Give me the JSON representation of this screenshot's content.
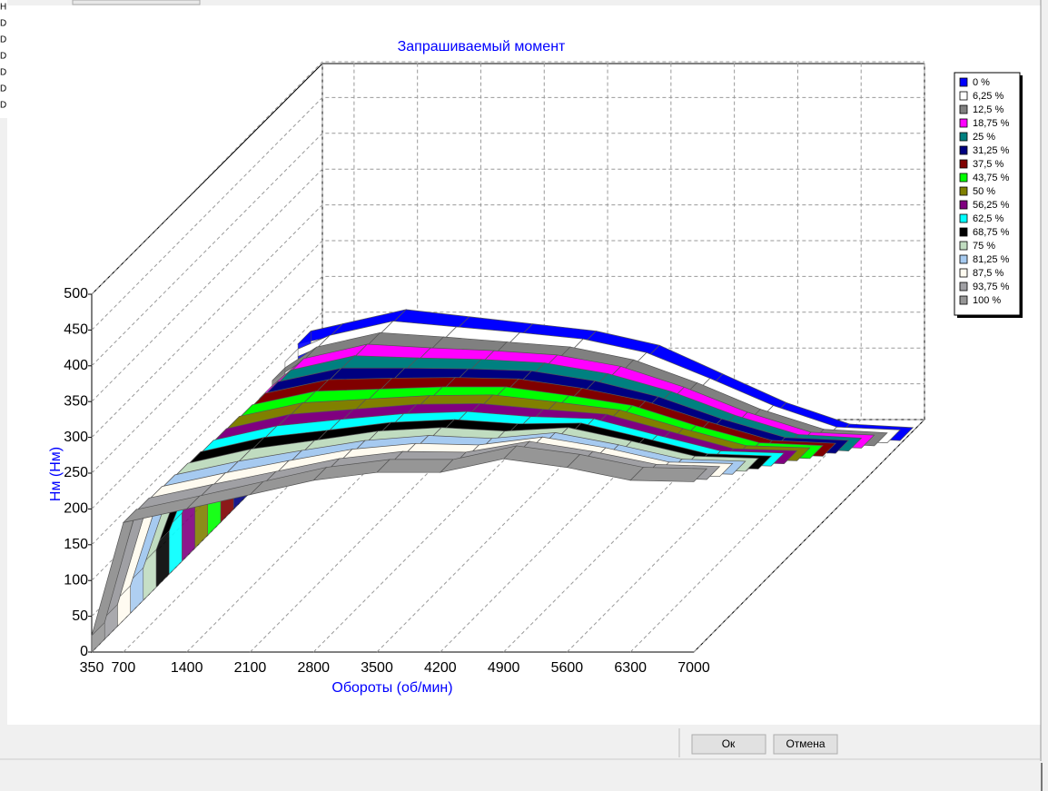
{
  "sidebar_letters": [
    "Н",
    "D",
    "D",
    "D",
    "D",
    "D",
    "D"
  ],
  "buttons": {
    "ok": "Ок",
    "cancel": "Отмена"
  },
  "chart_data": {
    "type": "surface3d",
    "title": "Запрашиваемый момент",
    "x_label": "Обороты (об/мин)",
    "y_label": "Нм (Нм)",
    "x": [
      350,
      700,
      1400,
      2100,
      2800,
      3500,
      4200,
      4900,
      5600,
      6300,
      7000
    ],
    "xlim": [
      350,
      7000
    ],
    "xticks": [
      350,
      700,
      1400,
      2100,
      2800,
      3500,
      4200,
      4900,
      5600,
      6300,
      7000
    ],
    "ylim": [
      0,
      500
    ],
    "yticks": [
      0,
      50,
      100,
      150,
      200,
      250,
      300,
      350,
      400,
      450,
      500
    ],
    "grid": true,
    "legend": "top-right",
    "series": [
      {
        "name": "0 %",
        "color": "#0000ff",
        "values": [
          140,
          150,
          170,
          160,
          150,
          140,
          120,
          80,
          40,
          10,
          5
        ]
      },
      {
        "name": "6,25 %",
        "color": "#ffffff",
        "values": [
          133,
          152,
          172,
          164,
          156,
          147,
          128,
          92,
          54,
          24,
          20
        ]
      },
      {
        "name": "12,5 %",
        "color": "#808080",
        "values": [
          125,
          154,
          174,
          168,
          161,
          154,
          136,
          104,
          67,
          39,
          34
        ]
      },
      {
        "name": "18,75 %",
        "color": "#ff00ff",
        "values": [
          118,
          156,
          176,
          171,
          167,
          161,
          145,
          116,
          81,
          53,
          49
        ]
      },
      {
        "name": "25 %",
        "color": "#008080",
        "values": [
          111,
          158,
          178,
          175,
          173,
          168,
          153,
          128,
          95,
          68,
          63
        ]
      },
      {
        "name": "31,25 %",
        "color": "#000080",
        "values": [
          103,
          160,
          179,
          179,
          178,
          175,
          161,
          139,
          108,
          82,
          78
        ]
      },
      {
        "name": "37,5 %",
        "color": "#800000",
        "values": [
          96,
          162,
          181,
          183,
          184,
          182,
          169,
          151,
          122,
          96,
          92
        ]
      },
      {
        "name": "43,75 %",
        "color": "#00ff00",
        "values": [
          89,
          164,
          183,
          186,
          189,
          189,
          177,
          163,
          135,
          111,
          107
        ]
      },
      {
        "name": "50 %",
        "color": "#808000",
        "values": [
          82,
          166,
          185,
          190,
          195,
          196,
          186,
          175,
          149,
          125,
          122
        ]
      },
      {
        "name": "56,25 %",
        "color": "#800080",
        "values": [
          74,
          167,
          187,
          194,
          201,
          202,
          194,
          187,
          163,
          139,
          136
        ]
      },
      {
        "name": "62,5 %",
        "color": "#00ffff",
        "values": [
          67,
          169,
          189,
          198,
          206,
          209,
          202,
          199,
          176,
          154,
          151
        ]
      },
      {
        "name": "68,75 %",
        "color": "#000000",
        "values": [
          60,
          171,
          191,
          201,
          212,
          216,
          210,
          211,
          190,
          168,
          165
        ]
      },
      {
        "name": "75 %",
        "color": "#c0dcc0",
        "values": [
          52,
          173,
          193,
          205,
          218,
          223,
          218,
          223,
          204,
          183,
          180
        ]
      },
      {
        "name": "81,25 %",
        "color": "#a6caf0",
        "values": [
          45,
          175,
          194,
          209,
          223,
          230,
          226,
          234,
          217,
          197,
          194
        ]
      },
      {
        "name": "87,5 %",
        "color": "#fffbf0",
        "values": [
          38,
          177,
          196,
          213,
          229,
          237,
          235,
          246,
          231,
          211,
          209
        ]
      },
      {
        "name": "93,75 %",
        "color": "#a0a0a4",
        "values": [
          30,
          179,
          198,
          216,
          234,
          244,
          243,
          258,
          244,
          226,
          223
        ]
      },
      {
        "name": "100 %",
        "color": "#969696",
        "values": [
          23,
          181,
          200,
          220,
          240,
          251,
          251,
          270,
          258,
          240,
          238
        ]
      }
    ]
  }
}
